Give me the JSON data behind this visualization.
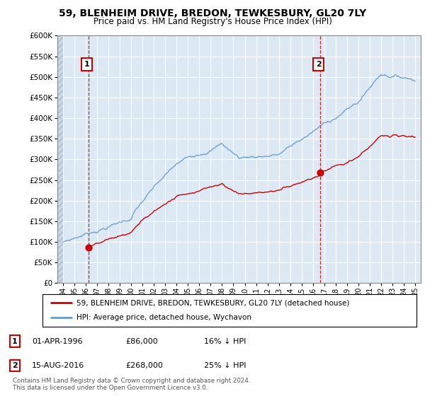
{
  "title": "59, BLENHEIM DRIVE, BREDON, TEWKESBURY, GL20 7LY",
  "subtitle": "Price paid vs. HM Land Registry's House Price Index (HPI)",
  "legend_line1": "59, BLENHEIM DRIVE, BREDON, TEWKESBURY, GL20 7LY (detached house)",
  "legend_line2": "HPI: Average price, detached house, Wychavon",
  "annotation1_date": "01-APR-1996",
  "annotation1_price": "£86,000",
  "annotation1_hpi": "16% ↓ HPI",
  "annotation2_date": "15-AUG-2016",
  "annotation2_price": "£268,000",
  "annotation2_hpi": "25% ↓ HPI",
  "footer": "Contains HM Land Registry data © Crown copyright and database right 2024.\nThis data is licensed under the Open Government Licence v3.0.",
  "sale_color": "#cc0000",
  "hpi_color": "#6699cc",
  "background_color": "#ffffff",
  "plot_bg_color": "#dce9f5",
  "grid_color": "#ffffff",
  "ylim": [
    0,
    600000
  ],
  "ytick_step": 50000,
  "sale1_year": 1996.25,
  "sale1_price": 86000,
  "sale2_year": 2016.62,
  "sale2_price": 268000
}
